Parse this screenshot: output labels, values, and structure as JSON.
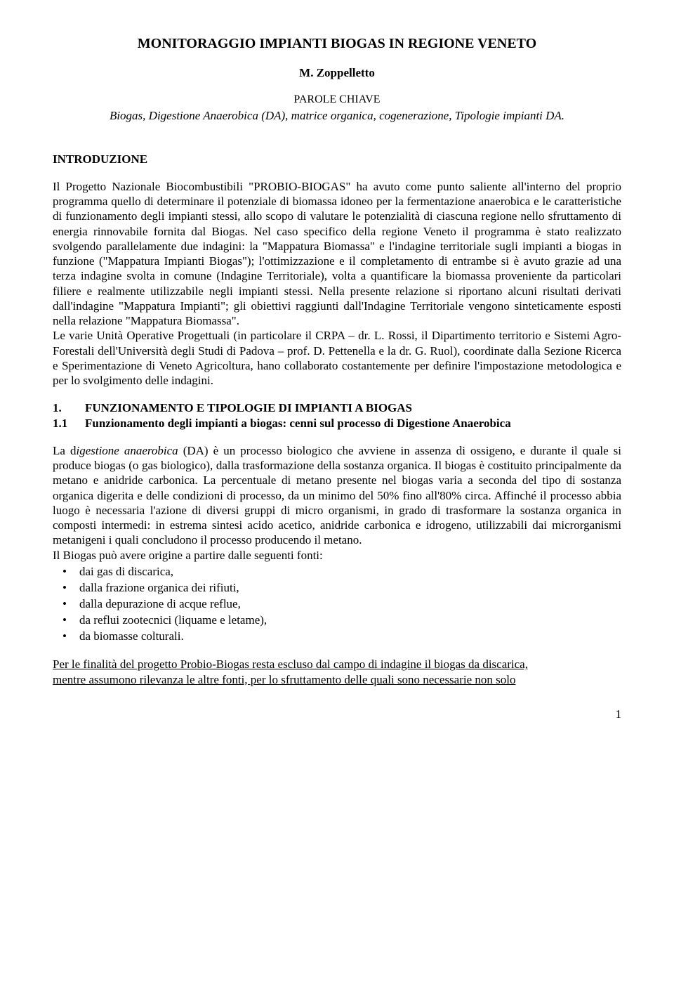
{
  "title": "MONITORAGGIO IMPIANTI BIOGAS IN REGIONE VENETO",
  "author": "M. Zoppelletto",
  "keywords_label": "PAROLE CHIAVE",
  "keywords": "Biogas, Digestione Anaerobica (DA), matrice organica, cogenerazione, Tipologie impianti DA.",
  "intro_heading": "INTRODUZIONE",
  "intro_p1": "Il Progetto Nazionale Biocombustibili \"PROBIO-BIOGAS\" ha avuto come punto saliente all'interno del proprio programma quello di determinare il potenziale di biomassa idoneo per la fermentazione anaerobica e le caratteristiche di funzionamento degli impianti stessi, allo scopo di valutare le potenzialità di ciascuna regione nello sfruttamento di energia rinnovabile fornita dal Biogas. Nel caso specifico della regione Veneto il programma è stato realizzato svolgendo parallelamente due indagini: la \"Mappatura Biomassa\" e l'indagine territoriale sugli impianti a biogas in funzione (\"Mappatura Impianti Biogas\"); l'ottimizzazione e il completamento di entrambe si è avuto grazie ad una terza indagine svolta in comune (Indagine Territoriale), volta a quantificare la biomassa proveniente da particolari filiere e realmente utilizzabile negli impianti stessi. Nella presente relazione si riportano alcuni risultati derivati dall'indagine \"Mappatura Impianti\"; gli obiettivi raggiunti dall'Indagine Territoriale vengono sinteticamente esposti nella relazione \"Mappatura Biomassa\".",
  "intro_p2": "Le varie Unità Operative Progettuali (in particolare il CRPA – dr. L. Rossi, il Dipartimento territorio e Sistemi Agro-Forestali dell'Università degli Studi di Padova – prof. D. Pettenella e la dr. G. Ruol), coordinate dalla Sezione Ricerca e Sperimentazione di Veneto Agricoltura, hano collaborato costantemente per definire l'impostazione metodologica e per lo svolgimento delle indagini.",
  "h1_num": "1.",
  "h1_text": "FUNZIONAMENTO E TIPOLOGIE DI IMPIANTI A BIOGAS",
  "h1_1_num": "1.1",
  "h1_1_text": "Funzionamento degli impianti a biogas: cenni sul processo di Digestione Anaerobica",
  "sec1_p1_a": "La d",
  "sec1_p1_b_italic": "igestione anaerobica",
  "sec1_p1_c": " (DA) è un processo biologico che avviene in assenza di ossigeno, e durante il quale si produce biogas (o gas biologico), dalla trasformazione della sostanza organica. Il biogas è costituito principalmente da metano e anidride carbonica. La percentuale di metano presente nel biogas varia a seconda del tipo di sostanza organica digerita e delle condizioni di processo, da un minimo del 50% fino all'80% circa. Affinché il processo abbia luogo è necessaria l'azione di diversi gruppi di micro organismi, in grado di trasformare la sostanza organica in composti intermedi: in estrema sintesi acido acetico, anidride carbonica e idrogeno, utilizzabili dai microrganismi metanigeni i quali concludono il processo producendo il metano.",
  "sec1_p2": "Il Biogas può avere origine a partire dalle seguenti fonti:",
  "bullets": [
    "dai gas di discarica,",
    "dalla frazione organica dei rifiuti,",
    "dalla depurazione di acque reflue,",
    "da reflui zootecnici (liquame e letame),",
    "da biomasse colturali."
  ],
  "closing_u1": "Per le finalità del progetto Probio-Biogas resta escluso dal campo di indagine il biogas da discarica,",
  "closing_u2": "mentre assumono rilevanza le altre fonti, per lo sfruttamento delle quali sono necessarie non solo",
  "page_number": "1"
}
